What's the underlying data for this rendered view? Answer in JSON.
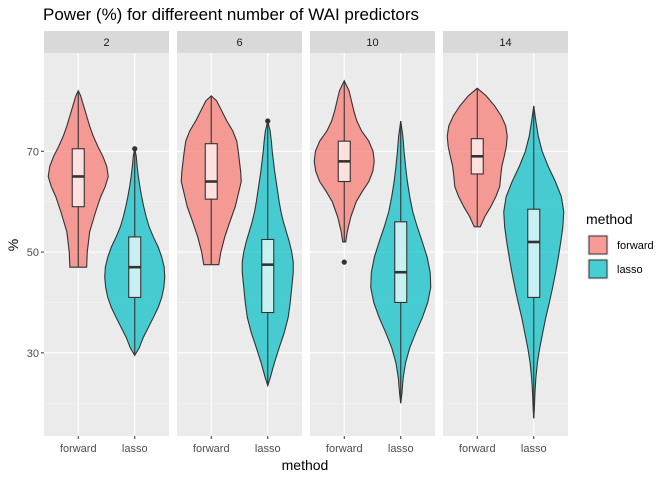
{
  "chart_data": {
    "type": "violin",
    "title": "Power (%) for differeent number of WAI predictors",
    "xlabel": "method",
    "ylabel": "%",
    "ylim": [
      13.5,
      89.5
    ],
    "y_ticks": [
      30,
      50,
      70
    ],
    "categories": [
      "forward",
      "lasso"
    ],
    "facets": [
      "2",
      "6",
      "10",
      "14"
    ],
    "legend": {
      "title": "method",
      "position": "right",
      "entries": [
        {
          "label": "forward",
          "color": "#F8766D"
        },
        {
          "label": "lasso",
          "color": "#00BFC4"
        }
      ]
    },
    "grid": true,
    "panels": [
      {
        "facet": "2",
        "violins": [
          {
            "method": "forward",
            "min": 47,
            "max": 82,
            "q1": 59,
            "median": 65,
            "q3": 70.5,
            "profile": [
              [
                47,
                0.28
              ],
              [
                50,
                0.3
              ],
              [
                54,
                0.38
              ],
              [
                58,
                0.58
              ],
              [
                61,
                0.75
              ],
              [
                63,
                0.9
              ],
              [
                65,
                1.0
              ],
              [
                67,
                0.95
              ],
              [
                69,
                0.82
              ],
              [
                71,
                0.65
              ],
              [
                73,
                0.5
              ],
              [
                75,
                0.38
              ],
              [
                77,
                0.28
              ],
              [
                79,
                0.18
              ],
              [
                81,
                0.08
              ],
              [
                82,
                0
              ]
            ],
            "outliers": []
          },
          {
            "method": "lasso",
            "min": 29.5,
            "max": 70.5,
            "q1": 41,
            "median": 47,
            "q3": 53,
            "profile": [
              [
                29.5,
                0
              ],
              [
                31,
                0.15
              ],
              [
                33,
                0.28
              ],
              [
                35,
                0.45
              ],
              [
                37,
                0.62
              ],
              [
                39,
                0.78
              ],
              [
                41,
                0.9
              ],
              [
                43,
                0.97
              ],
              [
                45,
                1.0
              ],
              [
                47,
                0.98
              ],
              [
                49,
                0.9
              ],
              [
                51,
                0.78
              ],
              [
                53,
                0.62
              ],
              [
                55,
                0.48
              ],
              [
                57,
                0.38
              ],
              [
                59,
                0.3
              ],
              [
                61,
                0.23
              ],
              [
                63,
                0.17
              ],
              [
                65,
                0.12
              ],
              [
                67,
                0.08
              ],
              [
                69,
                0.05
              ],
              [
                70.5,
                0
              ]
            ],
            "outliers": [
              70.5
            ]
          }
        ]
      },
      {
        "facet": "6",
        "violins": [
          {
            "method": "forward",
            "min": 47.5,
            "max": 81,
            "q1": 60.5,
            "median": 64,
            "q3": 71.5,
            "profile": [
              [
                47.5,
                0.25
              ],
              [
                50,
                0.32
              ],
              [
                53,
                0.45
              ],
              [
                56,
                0.62
              ],
              [
                59,
                0.8
              ],
              [
                62,
                0.92
              ],
              [
                64,
                1.0
              ],
              [
                66,
                0.98
              ],
              [
                68,
                0.94
              ],
              [
                70,
                0.9
              ],
              [
                72,
                0.85
              ],
              [
                74,
                0.72
              ],
              [
                76,
                0.52
              ],
              [
                78,
                0.35
              ],
              [
                80,
                0.18
              ],
              [
                81,
                0
              ]
            ],
            "outliers": []
          },
          {
            "method": "lasso",
            "min": 23.5,
            "max": 76,
            "q1": 38,
            "median": 47.5,
            "q3": 52.5,
            "profile": [
              [
                23.5,
                0
              ],
              [
                25,
                0.08
              ],
              [
                28,
                0.22
              ],
              [
                31,
                0.38
              ],
              [
                34,
                0.55
              ],
              [
                37,
                0.68
              ],
              [
                40,
                0.75
              ],
              [
                43,
                0.8
              ],
              [
                46,
                0.85
              ],
              [
                48,
                0.85
              ],
              [
                50,
                0.8
              ],
              [
                52,
                0.72
              ],
              [
                54,
                0.62
              ],
              [
                56,
                0.52
              ],
              [
                58,
                0.44
              ],
              [
                60,
                0.38
              ],
              [
                62,
                0.33
              ],
              [
                64,
                0.28
              ],
              [
                66,
                0.23
              ],
              [
                68,
                0.19
              ],
              [
                70,
                0.15
              ],
              [
                72,
                0.12
              ],
              [
                74,
                0.08
              ],
              [
                76,
                0
              ]
            ],
            "outliers": [
              76
            ]
          }
        ]
      },
      {
        "facet": "10",
        "violins": [
          {
            "method": "forward",
            "min": 52,
            "max": 84,
            "q1": 64,
            "median": 68,
            "q3": 72,
            "profile": [
              [
                52,
                0.05
              ],
              [
                54,
                0.1
              ],
              [
                57,
                0.22
              ],
              [
                60,
                0.4
              ],
              [
                62,
                0.6
              ],
              [
                64,
                0.82
              ],
              [
                66,
                0.95
              ],
              [
                68,
                1.0
              ],
              [
                70,
                0.96
              ],
              [
                72,
                0.82
              ],
              [
                74,
                0.58
              ],
              [
                76,
                0.42
              ],
              [
                78,
                0.32
              ],
              [
                80,
                0.24
              ],
              [
                82,
                0.16
              ],
              [
                84,
                0
              ]
            ],
            "outliers": [
              48
            ]
          },
          {
            "method": "lasso",
            "min": 20,
            "max": 76,
            "q1": 40,
            "median": 46,
            "q3": 56,
            "profile": [
              [
                20,
                0
              ],
              [
                22,
                0.04
              ],
              [
                25,
                0.08
              ],
              [
                28,
                0.16
              ],
              [
                31,
                0.3
              ],
              [
                34,
                0.5
              ],
              [
                37,
                0.72
              ],
              [
                40,
                0.9
              ],
              [
                43,
                1.0
              ],
              [
                46,
                0.98
              ],
              [
                49,
                0.88
              ],
              [
                52,
                0.72
              ],
              [
                55,
                0.55
              ],
              [
                58,
                0.4
              ],
              [
                61,
                0.3
              ],
              [
                64,
                0.22
              ],
              [
                67,
                0.16
              ],
              [
                70,
                0.11
              ],
              [
                73,
                0.07
              ],
              [
                76,
                0
              ]
            ],
            "outliers": []
          }
        ]
      },
      {
        "facet": "14",
        "violins": [
          {
            "method": "forward",
            "min": 55,
            "max": 82.5,
            "q1": 65.5,
            "median": 69,
            "q3": 72.5,
            "profile": [
              [
                55,
                0.1
              ],
              [
                57,
                0.25
              ],
              [
                59,
                0.45
              ],
              [
                61,
                0.62
              ],
              [
                63,
                0.75
              ],
              [
                65,
                0.78
              ],
              [
                67,
                0.82
              ],
              [
                69,
                0.9
              ],
              [
                71,
                0.97
              ],
              [
                73,
                1.0
              ],
              [
                75,
                0.95
              ],
              [
                77,
                0.8
              ],
              [
                79,
                0.58
              ],
              [
                81,
                0.3
              ],
              [
                82.5,
                0
              ]
            ],
            "outliers": []
          },
          {
            "method": "lasso",
            "min": 17,
            "max": 79,
            "q1": 41,
            "median": 52,
            "q3": 58.5,
            "profile": [
              [
                17,
                0
              ],
              [
                19,
                0.02
              ],
              [
                22,
                0.04
              ],
              [
                25,
                0.07
              ],
              [
                28,
                0.12
              ],
              [
                31,
                0.2
              ],
              [
                34,
                0.3
              ],
              [
                37,
                0.4
              ],
              [
                40,
                0.52
              ],
              [
                43,
                0.63
              ],
              [
                46,
                0.73
              ],
              [
                49,
                0.82
              ],
              [
                52,
                0.9
              ],
              [
                55,
                0.97
              ],
              [
                58,
                1.0
              ],
              [
                61,
                0.92
              ],
              [
                64,
                0.72
              ],
              [
                67,
                0.48
              ],
              [
                70,
                0.28
              ],
              [
                73,
                0.15
              ],
              [
                76,
                0.07
              ],
              [
                79,
                0
              ]
            ],
            "outliers": []
          }
        ]
      }
    ]
  }
}
